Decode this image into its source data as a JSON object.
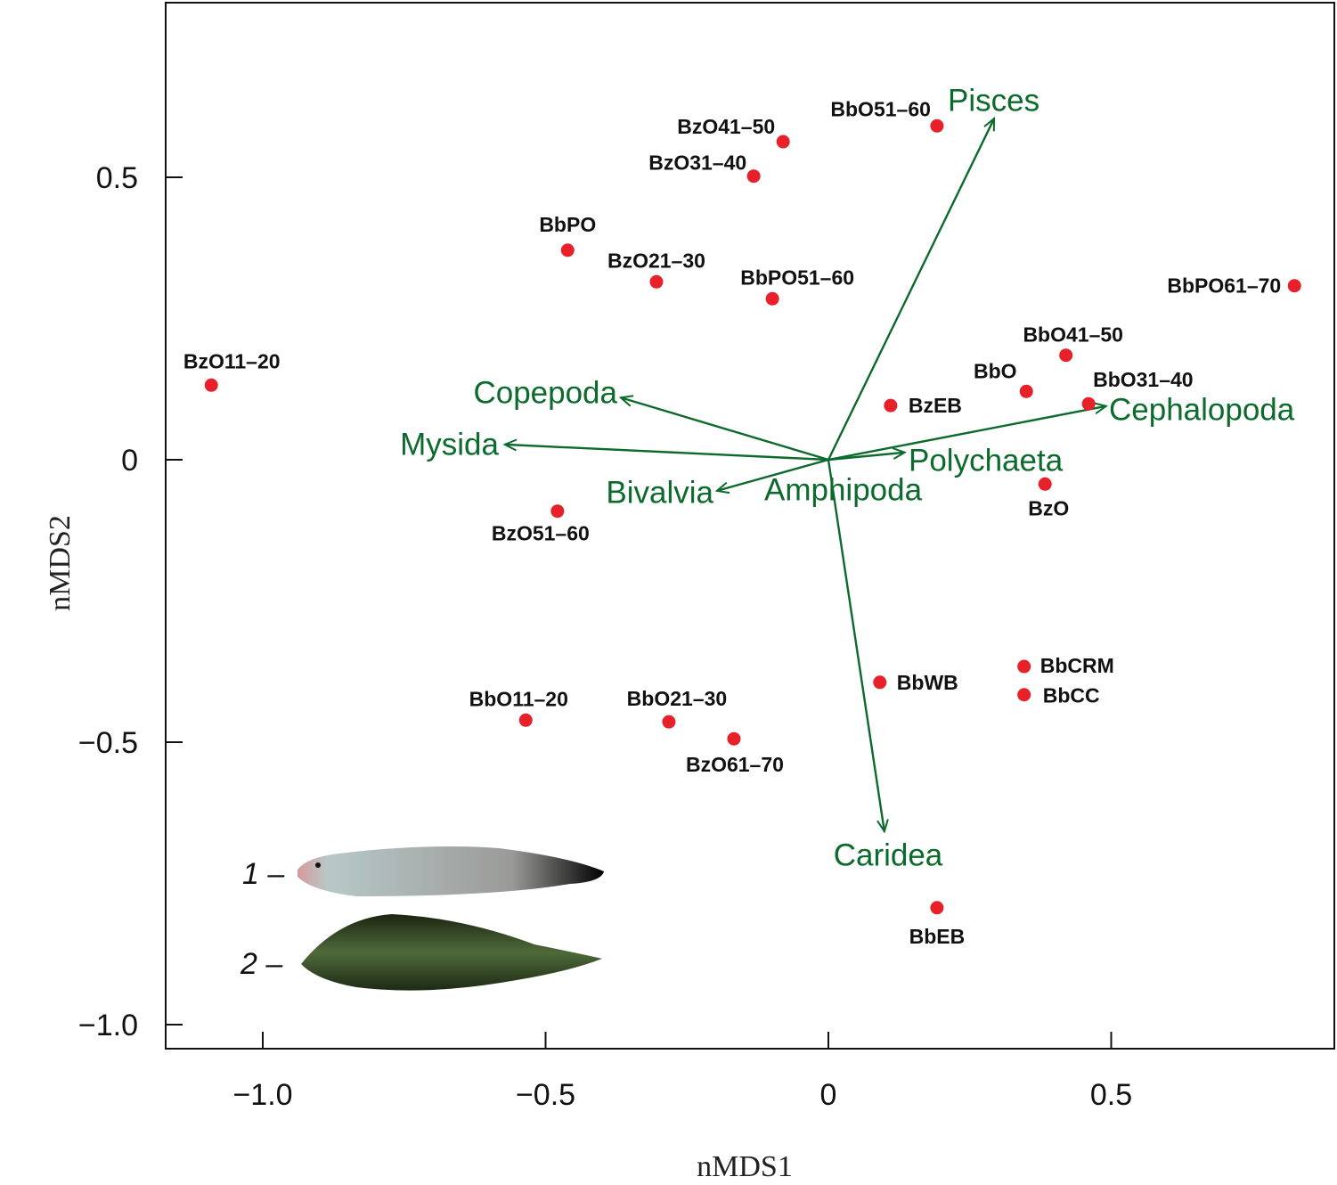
{
  "chart_data": {
    "type": "scatter",
    "xlabel": "nMDS1",
    "ylabel": "nMDS2",
    "xlim": [
      -1.172,
      0.894
    ],
    "ylim": [
      -1.043,
      0.809
    ],
    "xticks": [
      -1.0,
      -0.5,
      0,
      0.5
    ],
    "xtick_labels": [
      "−1.0",
      "−0.5",
      "0",
      "0.5"
    ],
    "yticks": [
      0.5,
      0,
      -0.5,
      -1.0
    ],
    "ytick_labels": [
      "0.5",
      "0",
      "−0.5",
      "−1.0"
    ],
    "grid": false,
    "point_color": "#e8202a",
    "vector_color": "#0b6a2c",
    "points": [
      {
        "label": "BzO11–20",
        "x": -1.091,
        "y": 0.132
      },
      {
        "label": "BbPO",
        "x": -0.461,
        "y": 0.371
      },
      {
        "label": "BzO21–30",
        "x": -0.304,
        "y": 0.315
      },
      {
        "label": "BbPO51–60",
        "x": -0.099,
        "y": 0.285
      },
      {
        "label": "BzO31–40",
        "x": -0.132,
        "y": 0.502
      },
      {
        "label": "BzO41–50",
        "x": -0.08,
        "y": 0.563
      },
      {
        "label": "BbO51–60",
        "x": 0.192,
        "y": 0.591
      },
      {
        "label": "BbPO61–70",
        "x": 0.824,
        "y": 0.308
      },
      {
        "label": "BbO41–50",
        "x": 0.42,
        "y": 0.185
      },
      {
        "label": "BbO",
        "x": 0.35,
        "y": 0.121
      },
      {
        "label": "BbO31–40",
        "x": 0.46,
        "y": 0.099
      },
      {
        "label": "BzEB",
        "x": 0.11,
        "y": 0.096
      },
      {
        "label": "BzO",
        "x": 0.383,
        "y": -0.043
      },
      {
        "label": "BzO51–60",
        "x": -0.479,
        "y": -0.091
      },
      {
        "label": "BbCRM",
        "x": 0.346,
        "y": -0.366
      },
      {
        "label": "BbCC",
        "x": 0.346,
        "y": -0.416
      },
      {
        "label": "BbWB",
        "x": 0.091,
        "y": -0.394
      },
      {
        "label": "BbO11–20",
        "x": -0.535,
        "y": -0.461
      },
      {
        "label": "BbO21–30",
        "x": -0.282,
        "y": -0.464
      },
      {
        "label": "BzO61–70",
        "x": -0.167,
        "y": -0.494
      },
      {
        "label": "BbEB",
        "x": 0.192,
        "y": -0.793
      }
    ],
    "vectors": [
      {
        "label": "Pisces",
        "x": 0.293,
        "y": 0.604
      },
      {
        "label": "Copepoda",
        "x": -0.367,
        "y": 0.11
      },
      {
        "label": "Mysida",
        "x": -0.572,
        "y": 0.027
      },
      {
        "label": "Bivalvia",
        "x": -0.197,
        "y": -0.055
      },
      {
        "label": "Amphipoda",
        "x": null,
        "y": null
      },
      {
        "label": "Polychaeta",
        "x": 0.135,
        "y": 0.013
      },
      {
        "label": "Cephalopoda",
        "x": 0.491,
        "y": 0.095
      },
      {
        "label": "Caridea",
        "x": 0.099,
        "y": -0.658
      }
    ],
    "legend": {
      "items": [
        {
          "label": "1 –",
          "image": "eelpout-fish"
        },
        {
          "label": "2 –",
          "image": "flatfish"
        }
      ],
      "placement": "bottom-left"
    }
  }
}
